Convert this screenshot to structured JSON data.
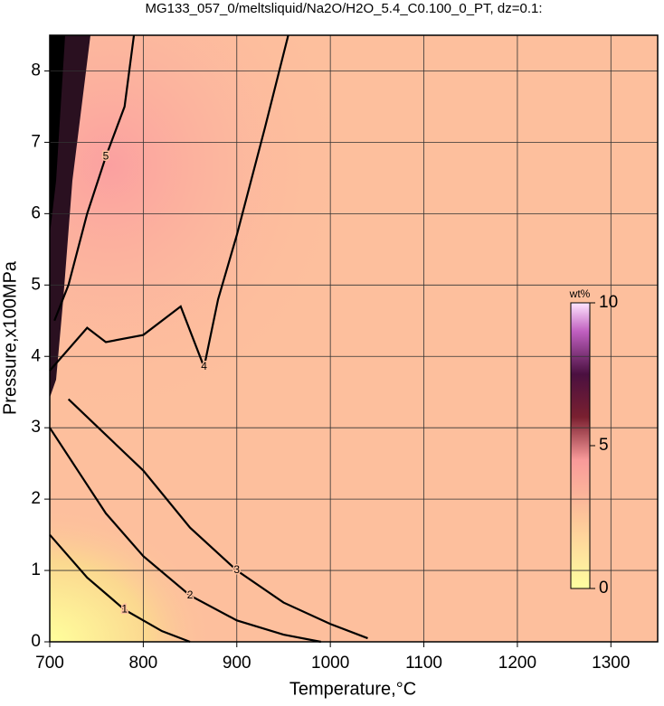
{
  "chart_data": {
    "type": "contour",
    "title": "MG133_057_0/meltsliquid/Na2O/H2O_5.4_C0.100_0_PT, dz=0.1:",
    "x_label": "Temperature,°C",
    "y_label": "Pressure,x100MPa",
    "xlim": [
      700,
      1350
    ],
    "ylim": [
      0,
      8.5
    ],
    "xticks": [
      700,
      800,
      900,
      1000,
      1100,
      1200,
      1300
    ],
    "yticks": [
      0,
      1,
      2,
      3,
      4,
      5,
      6,
      7,
      8
    ],
    "grid": true,
    "series": [
      {
        "level": 1,
        "color": "#000000",
        "x": [
          700,
          740,
          780,
          820,
          850
        ],
        "y": [
          1.5,
          0.9,
          0.45,
          0.15,
          0
        ]
      },
      {
        "level": 2,
        "color": "#000000",
        "x": [
          700,
          730,
          760,
          800,
          850,
          900,
          950,
          990
        ],
        "y": [
          3.0,
          2.4,
          1.8,
          1.2,
          0.65,
          0.3,
          0.1,
          0
        ]
      },
      {
        "level": 3,
        "color": "#000000",
        "x": [
          720,
          760,
          800,
          850,
          900,
          950,
          1000,
          1040
        ],
        "y": [
          3.4,
          2.9,
          2.4,
          1.6,
          1.0,
          0.55,
          0.25,
          0.05
        ]
      },
      {
        "level": 4,
        "color": "#000000",
        "x": [
          700,
          740,
          760,
          800,
          840,
          865,
          880,
          900,
          930,
          955
        ],
        "y": [
          3.8,
          4.4,
          4.2,
          4.3,
          4.7,
          3.85,
          4.8,
          5.7,
          7.2,
          8.5
        ]
      },
      {
        "level": 5,
        "color": "#000000",
        "x": [
          705,
          720,
          740,
          760,
          780,
          790
        ],
        "y": [
          4.5,
          5.0,
          6.0,
          6.8,
          7.5,
          8.5
        ]
      }
    ],
    "colorbar": {
      "label": "wt%",
      "lim": [
        0,
        10
      ],
      "ticks": [
        0,
        5,
        10
      ]
    }
  }
}
